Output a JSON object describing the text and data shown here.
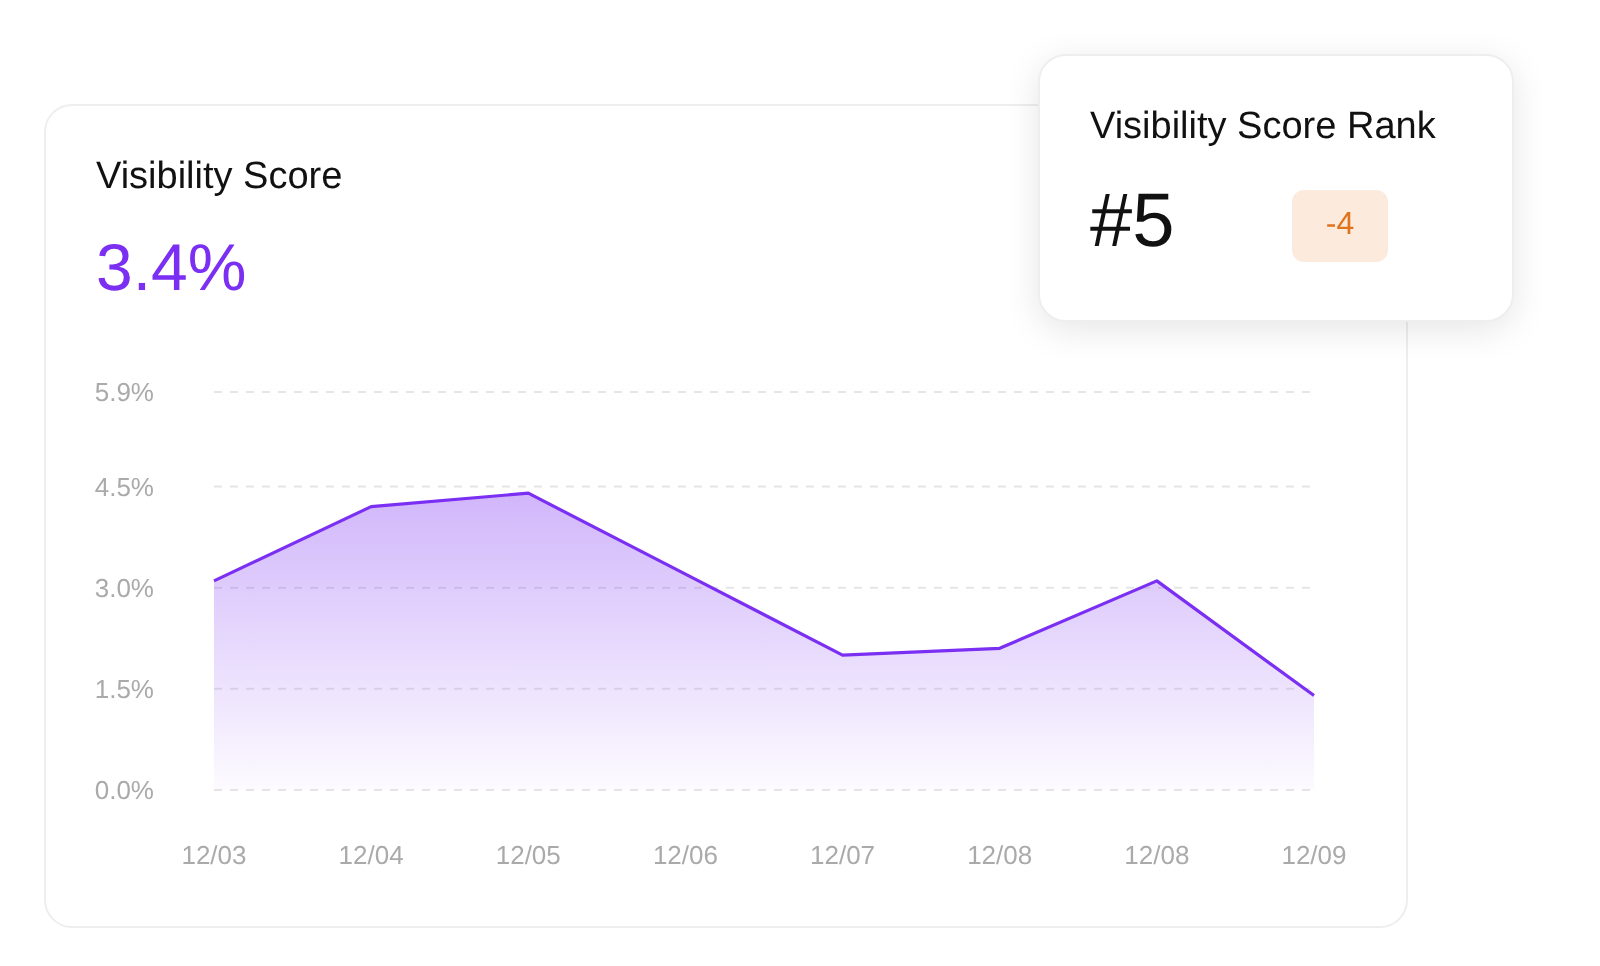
{
  "chart_data": {
    "type": "area",
    "title": "Visibility Score",
    "subtitle": "3.4%",
    "categories": [
      "12/03",
      "12/04",
      "12/05",
      "12/06",
      "12/07",
      "12/08",
      "12/08",
      "12/09"
    ],
    "series": [
      {
        "color": "#7b2ff2",
        "values": [
          3.1,
          4.2,
          4.4,
          3.2,
          2.0,
          2.1,
          3.1,
          1.4
        ]
      }
    ],
    "ylim": [
      0,
      5.9
    ],
    "yticks": [
      {
        "value": 0,
        "label": "0.0%"
      },
      {
        "value": 1.5,
        "label": "1.5%"
      },
      {
        "value": 3.0,
        "label": "3.0%"
      },
      {
        "value": 4.5,
        "label": "4.5%"
      },
      {
        "value": 5.9,
        "label": "5.9%"
      }
    ],
    "grid": "y",
    "marker": "none",
    "annotations": [
      "Visibility Score Rank",
      "#5",
      "-4"
    ]
  }
}
